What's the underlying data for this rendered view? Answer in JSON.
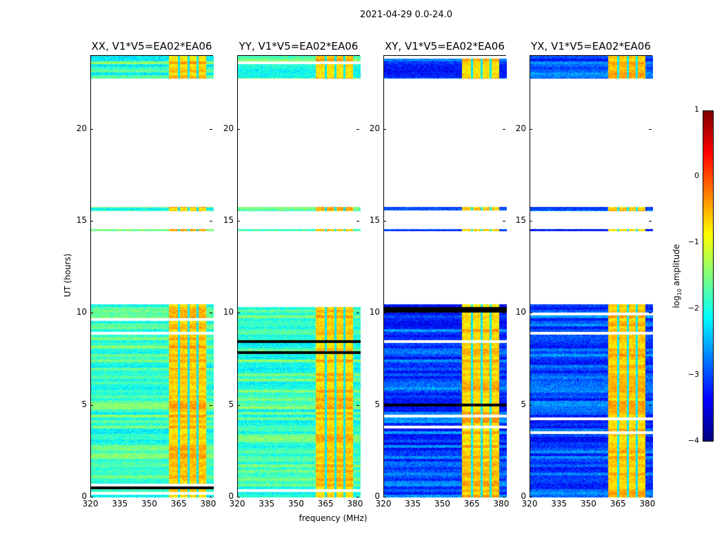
{
  "chart_data": {
    "type": "heatmap",
    "title": "2021-04-29 0.0-24.0",
    "xlabel": "frequency (MHz)",
    "ylabel": "UT (hours)",
    "xlim": [
      320,
      382.5
    ],
    "ylim": [
      0,
      24
    ],
    "xticks": [
      "320",
      "335",
      "350",
      "365",
      "380"
    ],
    "yticks": [
      "0",
      "5",
      "10",
      "15",
      "20"
    ],
    "panels": [
      {
        "title": "XX, V1*V5=EA02*EA06",
        "low_band_level": -1.8
      },
      {
        "title": "YY, V1*V5=EA02*EA06",
        "low_band_level": -1.8
      },
      {
        "title": "XY, V1*V5=EA02*EA06",
        "low_band_level": -3.0
      },
      {
        "title": "YX, V1*V5=EA02*EA06",
        "low_band_level": -3.0
      }
    ],
    "data_time_ranges_hours": [
      [
        0,
        10.5
      ],
      [
        14.5,
        14.6
      ],
      [
        15.6,
        15.8
      ],
      [
        22.8,
        24
      ]
    ],
    "high_amplitude_band_mhz": [
      359.5,
      378.5
    ],
    "high_band_level": -0.6,
    "colorbar": {
      "label_main": "log",
      "label_sub": "10",
      "label_rest": " amplitude",
      "range": [
        -4,
        1
      ],
      "ticks": [
        "1",
        "0",
        "−1",
        "−2",
        "−3",
        "−4"
      ],
      "colormap": "jet"
    }
  }
}
